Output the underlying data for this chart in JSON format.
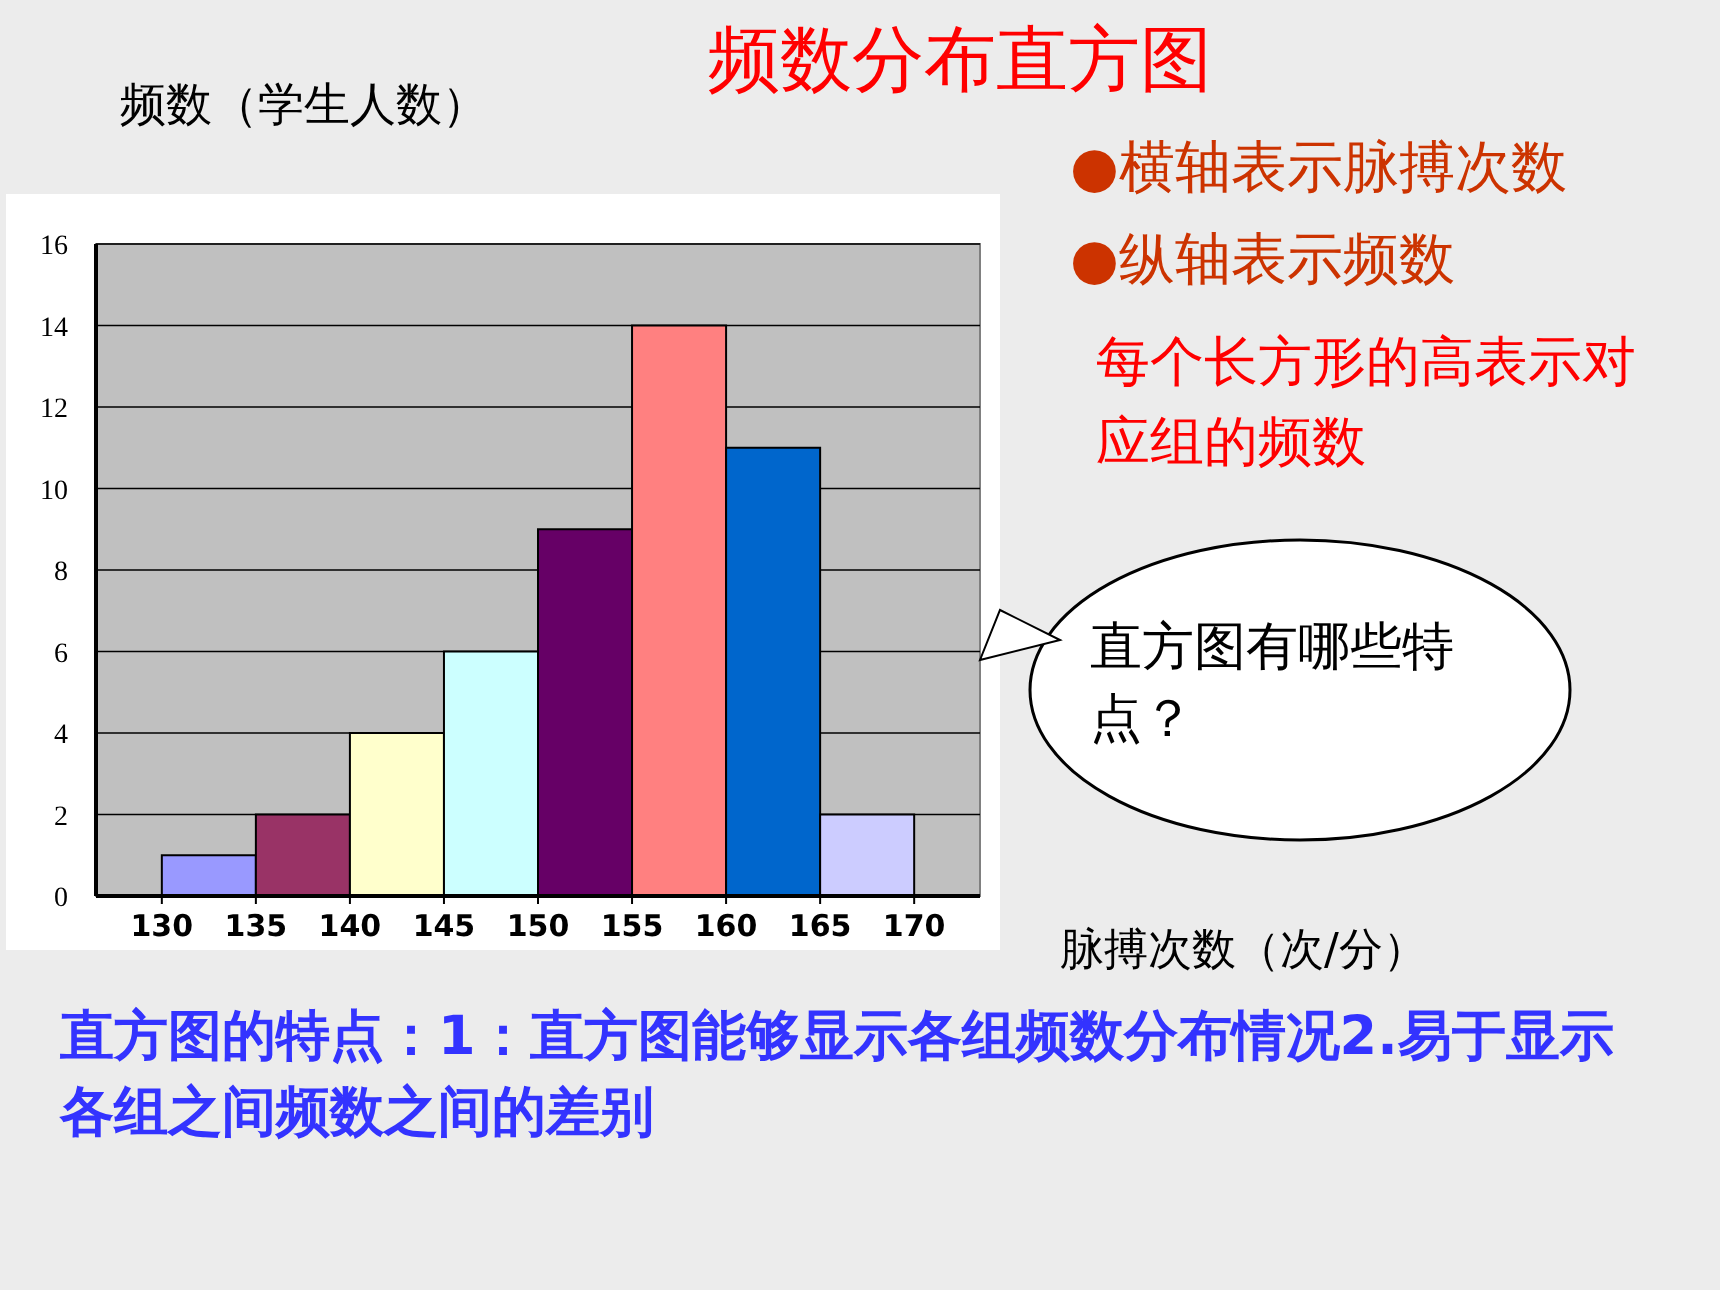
{
  "chart_data": {
    "type": "histogram",
    "title": "频数分布直方图",
    "ylabel": "频数（学生人数）",
    "xlabel": "脉搏次数（次/分）",
    "bins": [
      130,
      135,
      140,
      145,
      150,
      155,
      160,
      165,
      170
    ],
    "values": [
      1,
      2,
      4,
      6,
      9,
      14,
      11,
      2
    ],
    "colors": [
      "#9999ff",
      "#993366",
      "#ffffcc",
      "#ccffff",
      "#660066",
      "#ff8080",
      "#0066cc",
      "#ccccff"
    ],
    "xlim": [
      126.5,
      173.5
    ],
    "xticks": [
      130,
      135,
      140,
      145,
      150,
      155,
      160,
      165,
      170
    ],
    "ylim": [
      0,
      16
    ],
    "yticks": [
      0,
      2,
      4,
      6,
      8,
      10,
      12,
      14,
      16
    ],
    "grid": "y",
    "annotations": [
      "●横轴表示脉搏次数",
      "●纵轴表示频数",
      "每个长方形的高表示对应组的频数",
      "直方图有哪些特点？",
      "直方图的特点：1：直方图能够显示各组频数分布情况2.易于显示各组之间频数之间的差别"
    ]
  }
}
